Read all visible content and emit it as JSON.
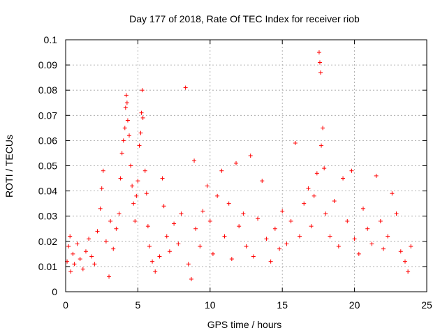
{
  "chart_data": {
    "type": "scatter",
    "title": "Day 177 of 2018, Rate Of TEC Index for receiver riob",
    "xlabel": "GPS time / hours",
    "ylabel": "ROTI / TECUs",
    "xlim": [
      0,
      25
    ],
    "ylim": [
      0,
      0.1
    ],
    "x_ticks": [
      "0",
      "5",
      "10",
      "15",
      "20",
      "25"
    ],
    "y_ticks": [
      "0",
      "0.01",
      "0.02",
      "0.03",
      "0.04",
      "0.05",
      "0.06",
      "0.07",
      "0.08",
      "0.09",
      "0.1"
    ],
    "grid": true,
    "marker": "plus",
    "color": "#ff0000",
    "series": [
      {
        "points": [
          [
            0.1,
            0.012
          ],
          [
            0.2,
            0.018
          ],
          [
            0.3,
            0.022
          ],
          [
            0.35,
            0.008
          ],
          [
            0.5,
            0.015
          ],
          [
            0.6,
            0.011
          ],
          [
            0.8,
            0.019
          ],
          [
            1.0,
            0.013
          ],
          [
            1.2,
            0.009
          ],
          [
            1.4,
            0.016
          ],
          [
            1.6,
            0.021
          ],
          [
            1.8,
            0.014
          ],
          [
            2.0,
            0.011
          ],
          [
            2.2,
            0.024
          ],
          [
            2.4,
            0.033
          ],
          [
            2.5,
            0.041
          ],
          [
            2.6,
            0.048
          ],
          [
            2.8,
            0.02
          ],
          [
            3.0,
            0.006
          ],
          [
            3.1,
            0.028
          ],
          [
            3.3,
            0.017
          ],
          [
            3.5,
            0.025
          ],
          [
            3.7,
            0.031
          ],
          [
            3.8,
            0.045
          ],
          [
            3.9,
            0.055
          ],
          [
            4.0,
            0.06
          ],
          [
            4.1,
            0.065
          ],
          [
            4.15,
            0.073
          ],
          [
            4.2,
            0.078
          ],
          [
            4.25,
            0.075
          ],
          [
            4.3,
            0.068
          ],
          [
            4.4,
            0.062
          ],
          [
            4.5,
            0.05
          ],
          [
            4.6,
            0.042
          ],
          [
            4.7,
            0.035
          ],
          [
            4.8,
            0.028
          ],
          [
            4.9,
            0.038
          ],
          [
            5.0,
            0.044
          ],
          [
            5.1,
            0.058
          ],
          [
            5.2,
            0.063
          ],
          [
            5.25,
            0.071
          ],
          [
            5.3,
            0.08
          ],
          [
            5.35,
            0.069
          ],
          [
            5.5,
            0.048
          ],
          [
            5.6,
            0.039
          ],
          [
            5.7,
            0.026
          ],
          [
            5.8,
            0.018
          ],
          [
            6.0,
            0.012
          ],
          [
            6.2,
            0.008
          ],
          [
            6.5,
            0.014
          ],
          [
            6.7,
            0.045
          ],
          [
            6.8,
            0.034
          ],
          [
            7.0,
            0.022
          ],
          [
            7.2,
            0.016
          ],
          [
            7.5,
            0.027
          ],
          [
            7.8,
            0.019
          ],
          [
            8.0,
            0.031
          ],
          [
            8.3,
            0.081
          ],
          [
            8.5,
            0.011
          ],
          [
            8.7,
            0.005
          ],
          [
            8.9,
            0.052
          ],
          [
            9.0,
            0.025
          ],
          [
            9.3,
            0.018
          ],
          [
            9.5,
            0.032
          ],
          [
            9.8,
            0.042
          ],
          [
            10.0,
            0.028
          ],
          [
            10.2,
            0.015
          ],
          [
            10.5,
            0.038
          ],
          [
            10.8,
            0.048
          ],
          [
            11.0,
            0.022
          ],
          [
            11.3,
            0.035
          ],
          [
            11.5,
            0.013
          ],
          [
            11.8,
            0.051
          ],
          [
            12.0,
            0.026
          ],
          [
            12.3,
            0.031
          ],
          [
            12.5,
            0.018
          ],
          [
            12.8,
            0.054
          ],
          [
            13.0,
            0.014
          ],
          [
            13.3,
            0.029
          ],
          [
            13.6,
            0.044
          ],
          [
            13.9,
            0.021
          ],
          [
            14.2,
            0.012
          ],
          [
            14.5,
            0.025
          ],
          [
            14.8,
            0.017
          ],
          [
            15.0,
            0.032
          ],
          [
            15.3,
            0.019
          ],
          [
            15.6,
            0.028
          ],
          [
            15.9,
            0.059
          ],
          [
            16.2,
            0.022
          ],
          [
            16.5,
            0.035
          ],
          [
            16.8,
            0.041
          ],
          [
            17.0,
            0.026
          ],
          [
            17.2,
            0.038
          ],
          [
            17.4,
            0.047
          ],
          [
            17.55,
            0.095
          ],
          [
            17.6,
            0.091
          ],
          [
            17.65,
            0.087
          ],
          [
            17.7,
            0.058
          ],
          [
            17.8,
            0.065
          ],
          [
            17.9,
            0.049
          ],
          [
            18.0,
            0.031
          ],
          [
            18.3,
            0.022
          ],
          [
            18.6,
            0.036
          ],
          [
            18.9,
            0.018
          ],
          [
            19.2,
            0.045
          ],
          [
            19.5,
            0.028
          ],
          [
            19.8,
            0.048
          ],
          [
            20.0,
            0.021
          ],
          [
            20.3,
            0.015
          ],
          [
            20.6,
            0.033
          ],
          [
            20.9,
            0.025
          ],
          [
            21.2,
            0.019
          ],
          [
            21.5,
            0.046
          ],
          [
            21.8,
            0.028
          ],
          [
            22.0,
            0.017
          ],
          [
            22.3,
            0.022
          ],
          [
            22.6,
            0.039
          ],
          [
            22.9,
            0.031
          ],
          [
            23.2,
            0.016
          ],
          [
            23.5,
            0.012
          ],
          [
            23.7,
            0.008
          ],
          [
            23.9,
            0.018
          ]
        ]
      }
    ]
  }
}
